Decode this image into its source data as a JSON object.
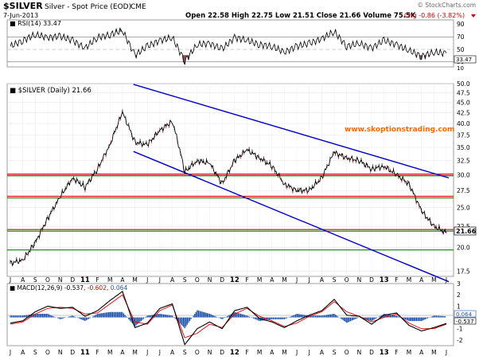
{
  "header": {
    "symbol": "$SILVER",
    "name": "Silver - Spot Price (EOD)",
    "exchange": "CME",
    "date": "7-Jun-2013",
    "quote": "Open 22.58  High 22.75  Low 21.51  Close 21.66  Volume 75.5K",
    "change": "Chg -0.86 (-3.82%)",
    "watermark": "© StockCharts.com"
  },
  "rsi_panel": {
    "label": "RSI(14) 33.47",
    "ticks": [
      "90",
      "70",
      "50",
      "30",
      "10"
    ],
    "last_value": "33.47"
  },
  "price_panel": {
    "label": "$SILVER (Daily) 21.66",
    "website": "www.skoptionstrading.com",
    "ticks": [
      "50.0",
      "47.5",
      "45.0",
      "42.5",
      "40.0",
      "37.5",
      "35.0",
      "32.5",
      "30.0",
      "27.5",
      "25.0",
      "22.5",
      "21.66",
      "20.0",
      "17.5"
    ]
  },
  "macd_panel": {
    "label_prefix": "MACD(12,26,9)",
    "macd_value": "-0.537,",
    "signal_value": "-0.602,",
    "hist_value": "0.064",
    "ticks": [
      "3",
      "2",
      "1",
      "0",
      "-1",
      "-2"
    ],
    "last_hist": "0.064",
    "last_macd": "-0.537"
  },
  "x_axis_labels": [
    "J",
    "A",
    "S",
    "O",
    "N",
    "D",
    "11",
    "F",
    "M",
    "A",
    "M",
    "J",
    "J",
    "A",
    "S",
    "O",
    "N",
    "D",
    "12",
    "F",
    "M",
    "A",
    "M",
    "J",
    "J",
    "A",
    "S",
    "O",
    "N",
    "D",
    "13",
    "F",
    "M",
    "A",
    "M",
    "J"
  ],
  "colors": {
    "price": "#000000",
    "down_candle": "#cc0000",
    "channel": "#0000cc",
    "resistance": "#dd0000",
    "support": "#008000",
    "macd_signal": "#dd0000",
    "histogram": "#2255aa",
    "rsi_overbought": "#4a7a3a",
    "website": "#ff6600"
  },
  "chart_data": {
    "type": "line",
    "title": "Silver - Spot Price (EOD)",
    "x": [
      "2010-07",
      "2010-08",
      "2010-09",
      "2010-10",
      "2010-11",
      "2010-12",
      "2011-01",
      "2011-02",
      "2011-03",
      "2011-04",
      "2011-05",
      "2011-06",
      "2011-07",
      "2011-08",
      "2011-09",
      "2011-10",
      "2011-11",
      "2011-12",
      "2012-01",
      "2012-02",
      "2012-03",
      "2012-04",
      "2012-05",
      "2012-06",
      "2012-07",
      "2012-08",
      "2012-09",
      "2012-10",
      "2012-11",
      "2012-12",
      "2013-01",
      "2013-02",
      "2013-03",
      "2013-04",
      "2013-05",
      "2013-06"
    ],
    "series": [
      {
        "name": "$SILVER",
        "values": [
          18.3,
          18.6,
          20.5,
          23.5,
          26.5,
          29.5,
          28.0,
          31.0,
          35.5,
          42.5,
          36.0,
          35.5,
          38.5,
          40.5,
          30.5,
          32.5,
          32.0,
          28.5,
          32.5,
          34.5,
          33.0,
          31.5,
          28.5,
          27.5,
          27.5,
          29.5,
          34.0,
          33.0,
          32.5,
          31.0,
          31.5,
          30.0,
          28.5,
          24.5,
          22.5,
          21.66
        ]
      }
    ],
    "macd": {
      "label": "MACD(12,26,9)",
      "macd": [
        -0.5,
        -0.3,
        0.5,
        1.0,
        0.8,
        0.9,
        0.1,
        0.6,
        1.5,
        2.3,
        -0.9,
        -0.5,
        0.8,
        1.2,
        -2.4,
        -1.0,
        -0.4,
        -1.0,
        0.6,
        0.9,
        -0.1,
        -0.4,
        -0.9,
        -0.3,
        0.2,
        0.6,
        1.6,
        0.2,
        0.1,
        -0.6,
        0.2,
        0.4,
        -0.7,
        -1.2,
        -0.9,
        -0.537
      ],
      "signal": [
        -0.6,
        -0.4,
        0.3,
        0.8,
        0.9,
        0.8,
        0.3,
        0.4,
        1.2,
        2.0,
        -0.4,
        -0.6,
        0.6,
        1.1,
        -1.8,
        -1.4,
        -0.6,
        -0.9,
        0.3,
        0.8,
        0.1,
        -0.3,
        -0.8,
        -0.5,
        0.1,
        0.5,
        1.4,
        0.5,
        0.1,
        -0.4,
        0.0,
        0.3,
        -0.5,
        -1.0,
        -1.0,
        -0.602
      ],
      "ylim": [
        -2.5,
        3.0
      ]
    },
    "rsi": {
      "label": "RSI(14)",
      "values": [
        45,
        55,
        65,
        60,
        62,
        55,
        42,
        60,
        65,
        72,
        30,
        45,
        55,
        60,
        20,
        48,
        50,
        40,
        60,
        55,
        48,
        45,
        35,
        45,
        50,
        58,
        70,
        45,
        50,
        42,
        55,
        48,
        38,
        28,
        35,
        33.47
      ],
      "ylim": [
        10,
        90
      ]
    },
    "trendlines": {
      "channel_upper": [
        [
          "2011-04-28",
          49.8
        ],
        [
          "2013-06-07",
          29.5
        ]
      ],
      "channel_lower": [
        [
          "2011-04-28",
          34.2
        ],
        [
          "2013-06-07",
          16.5
        ]
      ],
      "horizontal_red": [
        30.0,
        26.5,
        22.0
      ],
      "horizontal_green": [
        30.0,
        26.5,
        22.0,
        19.8
      ]
    },
    "xlabel": "",
    "ylabel": "",
    "ylim": [
      17.0,
      50.0
    ],
    "grid": true,
    "scale": "log"
  }
}
